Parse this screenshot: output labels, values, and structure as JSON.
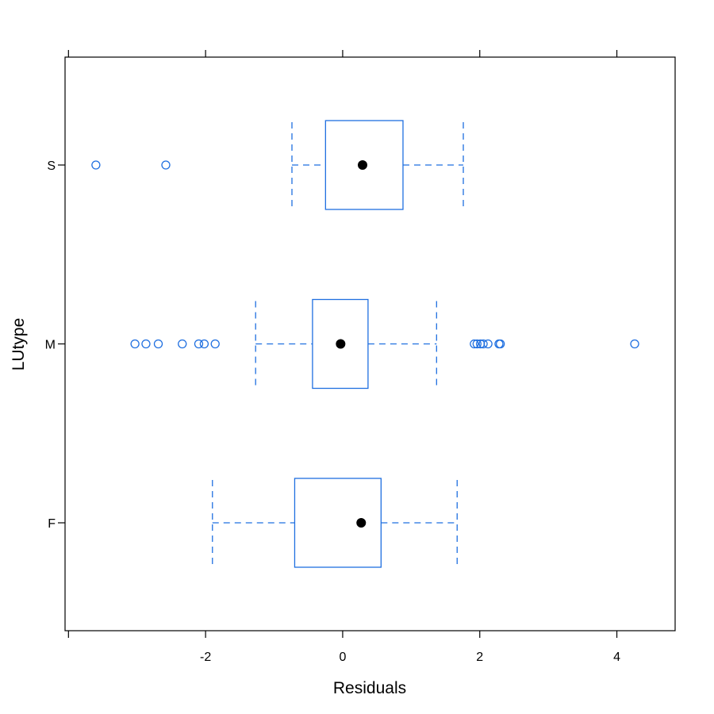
{
  "chart_data": {
    "type": "boxplot",
    "orientation": "horizontal",
    "title": "",
    "xlabel": "Residuals",
    "ylabel": "LUtype",
    "xlim": [
      -4.05,
      4.85
    ],
    "x_ticks": [
      -4,
      -2,
      0,
      2,
      4
    ],
    "x_tick_labels": [
      "",
      "-2",
      "0",
      "2",
      "4"
    ],
    "categories": [
      "F",
      "M",
      "S"
    ],
    "grid": false,
    "colors": {
      "box": "#1f6fe0",
      "median_dot": "#000000",
      "frame": "#000000"
    },
    "boxes": [
      {
        "category": "F",
        "whisker_low": -1.9,
        "q1": -0.7,
        "median": 0.27,
        "q3": 0.56,
        "whisker_high": 1.67,
        "outliers": []
      },
      {
        "category": "M",
        "whisker_low": -1.27,
        "q1": -0.44,
        "median": -0.03,
        "q3": 0.37,
        "whisker_high": 1.37,
        "outliers": [
          -3.03,
          -2.87,
          -2.69,
          -2.34,
          -2.1,
          -2.02,
          -1.86,
          1.92,
          1.96,
          2.01,
          2.05,
          2.12,
          2.28,
          2.3,
          4.26
        ]
      },
      {
        "category": "S",
        "whisker_low": -0.74,
        "q1": -0.25,
        "median": 0.29,
        "q3": 0.88,
        "whisker_high": 1.76,
        "outliers": [
          -3.6,
          -2.58
        ]
      }
    ]
  }
}
